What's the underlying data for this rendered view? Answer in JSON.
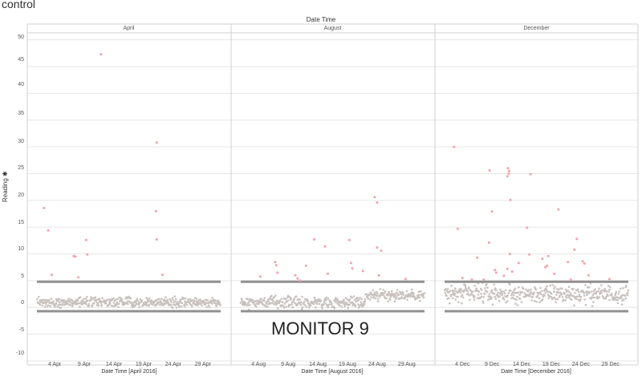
{
  "sheet_title": "control",
  "annotation": "MONITOR 9",
  "colors": {
    "normal_point": "#c9c1bd",
    "outlier_point": "#f0a2a8",
    "control_line": "#909090",
    "grid": "#e6e6e6",
    "divider": "#d0d0d0"
  },
  "chart_data": {
    "type": "scatter",
    "column_header": "Date Time",
    "y_axis_title": "Reading",
    "y_ticks": [
      "50",
      "45",
      "40",
      "35",
      "30",
      "25",
      "20",
      "15",
      "10",
      "5",
      "0",
      "-5",
      "-10"
    ],
    "ylim": [
      -10,
      51
    ],
    "grid": true,
    "control_lines": [
      4.8,
      -0.7
    ],
    "panels": [
      {
        "label": "April",
        "x_title": "Date Time [April 2016]",
        "xlim": [
          1,
          32
        ],
        "x_ticks": [
          {
            "day": 4,
            "label": "4 Apr"
          },
          {
            "day": 9,
            "label": "9 Apr"
          },
          {
            "day": 14,
            "label": "14 Apr"
          },
          {
            "day": 19,
            "label": "19 Apr"
          },
          {
            "day": 24,
            "label": "24 Apr"
          },
          {
            "day": 29,
            "label": "29 Apr"
          }
        ],
        "baseline": {
          "center": 1.0,
          "spread": 0.7
        },
        "outliers": [
          {
            "x": 2.2,
            "y": 18.6
          },
          {
            "x": 2.9,
            "y": 14.4
          },
          {
            "x": 3.5,
            "y": 6.1
          },
          {
            "x": 7.2,
            "y": 9.6
          },
          {
            "x": 7.5,
            "y": 9.5
          },
          {
            "x": 8.0,
            "y": 5.6
          },
          {
            "x": 9.3,
            "y": 12.6
          },
          {
            "x": 9.5,
            "y": 9.9
          },
          {
            "x": 11.8,
            "y": 47.3
          },
          {
            "x": 21.2,
            "y": 30.8
          },
          {
            "x": 21.1,
            "y": 18.0
          },
          {
            "x": 21.2,
            "y": 12.7
          },
          {
            "x": 22.2,
            "y": 6.1
          }
        ]
      },
      {
        "label": "August",
        "x_title": "Date Time [August 2016]",
        "xlim": [
          1,
          32
        ],
        "x_ticks": [
          {
            "day": 4,
            "label": "4 Aug"
          },
          {
            "day": 9,
            "label": "9 Aug"
          },
          {
            "day": 14,
            "label": "14 Aug"
          },
          {
            "day": 19,
            "label": "19 Aug"
          },
          {
            "day": 24,
            "label": "24 Aug"
          },
          {
            "day": 29,
            "label": "29 Aug"
          }
        ],
        "baseline": {
          "center": 1.0,
          "spread": 0.8,
          "shift_after_day": 22,
          "shift_center": 2.3
        },
        "outliers": [
          {
            "x": 4.3,
            "y": 5.8
          },
          {
            "x": 6.8,
            "y": 8.5
          },
          {
            "x": 7.0,
            "y": 7.9
          },
          {
            "x": 7.2,
            "y": 6.5
          },
          {
            "x": 10.2,
            "y": 6.0
          },
          {
            "x": 10.6,
            "y": 5.4
          },
          {
            "x": 11.0,
            "y": 5.0
          },
          {
            "x": 12.0,
            "y": 7.8
          },
          {
            "x": 13.4,
            "y": 12.7
          },
          {
            "x": 15.2,
            "y": 11.4
          },
          {
            "x": 15.7,
            "y": 6.3
          },
          {
            "x": 19.3,
            "y": 12.6
          },
          {
            "x": 19.6,
            "y": 8.3
          },
          {
            "x": 19.8,
            "y": 7.3
          },
          {
            "x": 21.6,
            "y": 6.8
          },
          {
            "x": 23.6,
            "y": 20.6
          },
          {
            "x": 24.0,
            "y": 19.6
          },
          {
            "x": 24.0,
            "y": 11.2
          },
          {
            "x": 24.7,
            "y": 10.6
          },
          {
            "x": 24.3,
            "y": 6.0
          },
          {
            "x": 28.8,
            "y": 5.3
          }
        ]
      },
      {
        "label": "December",
        "x_title": "Date Time [December 2016]",
        "xlim": [
          1,
          32
        ],
        "x_ticks": [
          {
            "day": 4,
            "label": "4 Dec"
          },
          {
            "day": 9,
            "label": "9 Dec"
          },
          {
            "day": 14,
            "label": "14 Dec"
          },
          {
            "day": 19,
            "label": "19 Dec"
          },
          {
            "day": 24,
            "label": "24 Dec"
          },
          {
            "day": 29,
            "label": "29 Dec"
          }
        ],
        "baseline": {
          "center": 2.5,
          "spread": 1.3
        },
        "outliers": [
          {
            "x": 2.6,
            "y": 30.0
          },
          {
            "x": 3.2,
            "y": 14.7
          },
          {
            "x": 4.0,
            "y": 5.5
          },
          {
            "x": 5.6,
            "y": 5.2
          },
          {
            "x": 6.5,
            "y": 9.3
          },
          {
            "x": 7.6,
            "y": 5.2
          },
          {
            "x": 8.5,
            "y": 12.1
          },
          {
            "x": 8.6,
            "y": 25.6
          },
          {
            "x": 9.0,
            "y": 17.9
          },
          {
            "x": 9.5,
            "y": 7.0
          },
          {
            "x": 9.7,
            "y": 6.5
          },
          {
            "x": 11.0,
            "y": 5.9
          },
          {
            "x": 11.7,
            "y": 26.0
          },
          {
            "x": 11.9,
            "y": 25.5
          },
          {
            "x": 11.6,
            "y": 24.5
          },
          {
            "x": 11.8,
            "y": 25.0
          },
          {
            "x": 12.1,
            "y": 20.1
          },
          {
            "x": 12.0,
            "y": 10.0
          },
          {
            "x": 11.6,
            "y": 7.2
          },
          {
            "x": 12.4,
            "y": 6.7
          },
          {
            "x": 13.5,
            "y": 8.3
          },
          {
            "x": 14.9,
            "y": 14.9
          },
          {
            "x": 15.5,
            "y": 24.9
          },
          {
            "x": 15.3,
            "y": 9.9
          },
          {
            "x": 17.5,
            "y": 9.1
          },
          {
            "x": 18.0,
            "y": 7.5
          },
          {
            "x": 18.3,
            "y": 7.8
          },
          {
            "x": 18.5,
            "y": 9.6
          },
          {
            "x": 19.5,
            "y": 6.3
          },
          {
            "x": 20.2,
            "y": 18.3
          },
          {
            "x": 21.8,
            "y": 8.5
          },
          {
            "x": 22.3,
            "y": 5.2
          },
          {
            "x": 23.3,
            "y": 12.8
          },
          {
            "x": 22.9,
            "y": 10.8
          },
          {
            "x": 24.3,
            "y": 8.6
          },
          {
            "x": 24.6,
            "y": 8.2
          },
          {
            "x": 25.3,
            "y": 6.0
          },
          {
            "x": 28.8,
            "y": 5.3
          }
        ]
      }
    ]
  }
}
